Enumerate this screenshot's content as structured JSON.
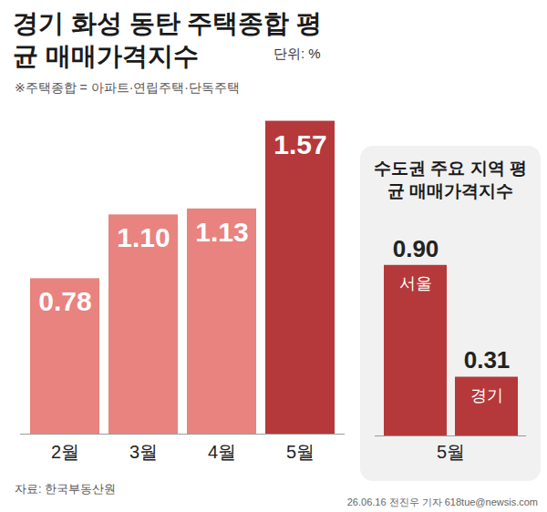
{
  "chart_data": [
    {
      "type": "bar",
      "title": "경기 화성 동탄 주택종합 평균 매매가격지수",
      "unit": "단위: %",
      "note": "※주택종합 = 아파트·연립주택·단독주택",
      "categories": [
        "2월",
        "3월",
        "4월",
        "5월"
      ],
      "values": [
        0.78,
        1.1,
        1.13,
        1.57
      ],
      "value_labels": [
        "0.78",
        "1.10",
        "1.13",
        "1.57"
      ],
      "colors": [
        "#e8837f",
        "#e8837f",
        "#e8837f",
        "#b5393b"
      ],
      "ylim": [
        0,
        1.6
      ],
      "yticks": [],
      "tick_labels": "x",
      "data_labels": true
    },
    {
      "type": "bar",
      "title": "수도권 주요 지역 평균 매매가격지수",
      "xlabel": "5월",
      "categories": [
        "서울",
        "경기"
      ],
      "values": [
        0.9,
        0.31
      ],
      "value_labels": [
        "0.90",
        "0.31"
      ],
      "color": "#b5393b",
      "ylim": [
        0,
        1
      ],
      "yticks": [],
      "tick_labels": false,
      "data_labels": true
    }
  ],
  "source": "자료: 한국부동산원",
  "credit": "26.06.16 전진우 기자 618tue@newsis.com"
}
